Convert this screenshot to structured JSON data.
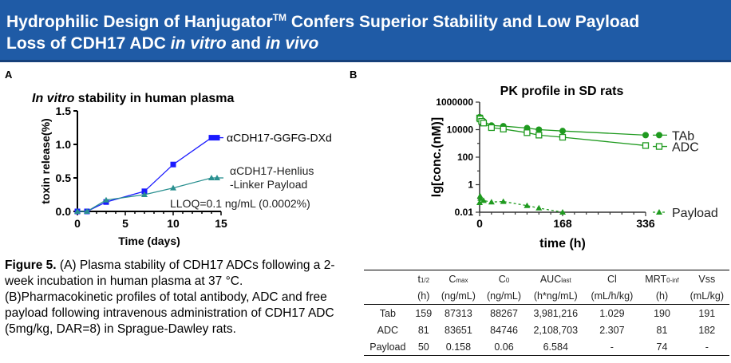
{
  "header": {
    "title_1": "Hydrophilic Design of Hanjugator",
    "title_tm": "TM",
    "title_2": " Confers Superior Stability and Low Payload",
    "title_3": "Loss of CDH17 ADC ",
    "title_it1": "in vitro",
    "title_and": " and ",
    "title_it2": "in vivo"
  },
  "panel_a_label": "A",
  "panel_b_label": "B",
  "chart_data": [
    {
      "type": "line",
      "title_italic": "In vitro",
      "title": " stability in  human plasma",
      "xlabel": "Time (days)",
      "ylabel": "toxin release(%)",
      "xlim": [
        0,
        15
      ],
      "ylim": [
        0,
        1.5
      ],
      "xticks": [
        "0",
        "5",
        "10",
        "15"
      ],
      "yticks": [
        "0.0",
        "0.5",
        "1.0",
        "1.5"
      ],
      "annotation": "LLOQ=0.1 ng/mL (0.0002%)",
      "legend": "right",
      "series": [
        {
          "name": "αCDH17-GGFG-DXd",
          "color": "#1a1aff",
          "marker": "square",
          "x": [
            0,
            1,
            3,
            7,
            10,
            14
          ],
          "y": [
            0,
            0,
            0.14,
            0.3,
            0.7,
            1.1
          ]
        },
        {
          "name": "αCDH17-Henlius\n-Linker Payload",
          "name_1": "αCDH17-Henlius",
          "name_2": "-Linker Payload",
          "color": "#2a9090",
          "marker": "triangle",
          "x": [
            0,
            1,
            3,
            7,
            10,
            14
          ],
          "y": [
            0,
            0,
            0.17,
            0.25,
            0.35,
            0.5
          ]
        }
      ]
    },
    {
      "type": "line",
      "title": "PK profile in SD rats",
      "xlabel": "time (h)",
      "ylabel": "lg[conc.(nM)]",
      "yscale": "log",
      "xlim": [
        0,
        336
      ],
      "ylim": [
        0.01,
        1000000
      ],
      "xticks": [
        "0",
        "168",
        "336"
      ],
      "yticks": [
        "0.01",
        "1",
        "100",
        "10000",
        "1000000"
      ],
      "legend": "right",
      "series": [
        {
          "name": "TAb",
          "color": "#1f9a1f",
          "marker": "circle-filled",
          "x": [
            0,
            1,
            2,
            4,
            8,
            24,
            48,
            96,
            120,
            168,
            336
          ],
          "y": [
            80000,
            75000,
            60000,
            50000,
            40000,
            20000,
            18000,
            13000,
            10000,
            8000,
            4000
          ]
        },
        {
          "name": "ADC",
          "color": "#1f9a1f",
          "marker": "square-open",
          "x": [
            0,
            1,
            4,
            8,
            24,
            48,
            96,
            120,
            168,
            336
          ],
          "y": [
            70000,
            60000,
            40000,
            30000,
            14000,
            11000,
            6000,
            4000,
            2800,
            700
          ]
        },
        {
          "name": "Payload",
          "color": "#1f9a1f",
          "marker": "triangle",
          "dashed": true,
          "x": [
            0,
            1,
            2,
            8,
            24,
            48,
            96,
            120,
            168
          ],
          "y": [
            0.05,
            0.15,
            0.1,
            0.07,
            0.055,
            0.06,
            0.03,
            0.02,
            0.01
          ]
        }
      ]
    }
  ],
  "caption": {
    "bold": "Figure 5.",
    "text": " (A) Plasma stability of CDH17 ADCs following a 2-week incubation in human plasma at 37 °C. (B)Pharmacokinetic profiles of total antibody, ADC and free payload following intravenous administration of CDH17 ADC (5mg/kg, DAR=8) in Sprague-Dawley rats."
  },
  "table": {
    "headers": [
      [
        "",
        ""
      ],
      [
        "t",
        "1/2",
        "(h)"
      ],
      [
        "C",
        "max",
        "(ng/mL)"
      ],
      [
        "C",
        "0",
        "(ng/mL)"
      ],
      [
        "AUC",
        "last",
        "(h*ng/mL)"
      ],
      [
        "Cl",
        "",
        "(mL/h/kg)"
      ],
      [
        "MRT",
        "0-inf",
        "(h)"
      ],
      [
        "Vss",
        "",
        "(mL/kg)"
      ]
    ],
    "rows": [
      [
        "Tab",
        "159",
        "87313",
        "88267",
        "3,981,216",
        "1.029",
        "190",
        "191"
      ],
      [
        "ADC",
        "81",
        "83651",
        "84746",
        "2,108,703",
        "2.307",
        "81",
        "182"
      ],
      [
        "Payload",
        "50",
        "0.158",
        "0.06",
        "6.584",
        "-",
        "74",
        "-"
      ]
    ]
  }
}
